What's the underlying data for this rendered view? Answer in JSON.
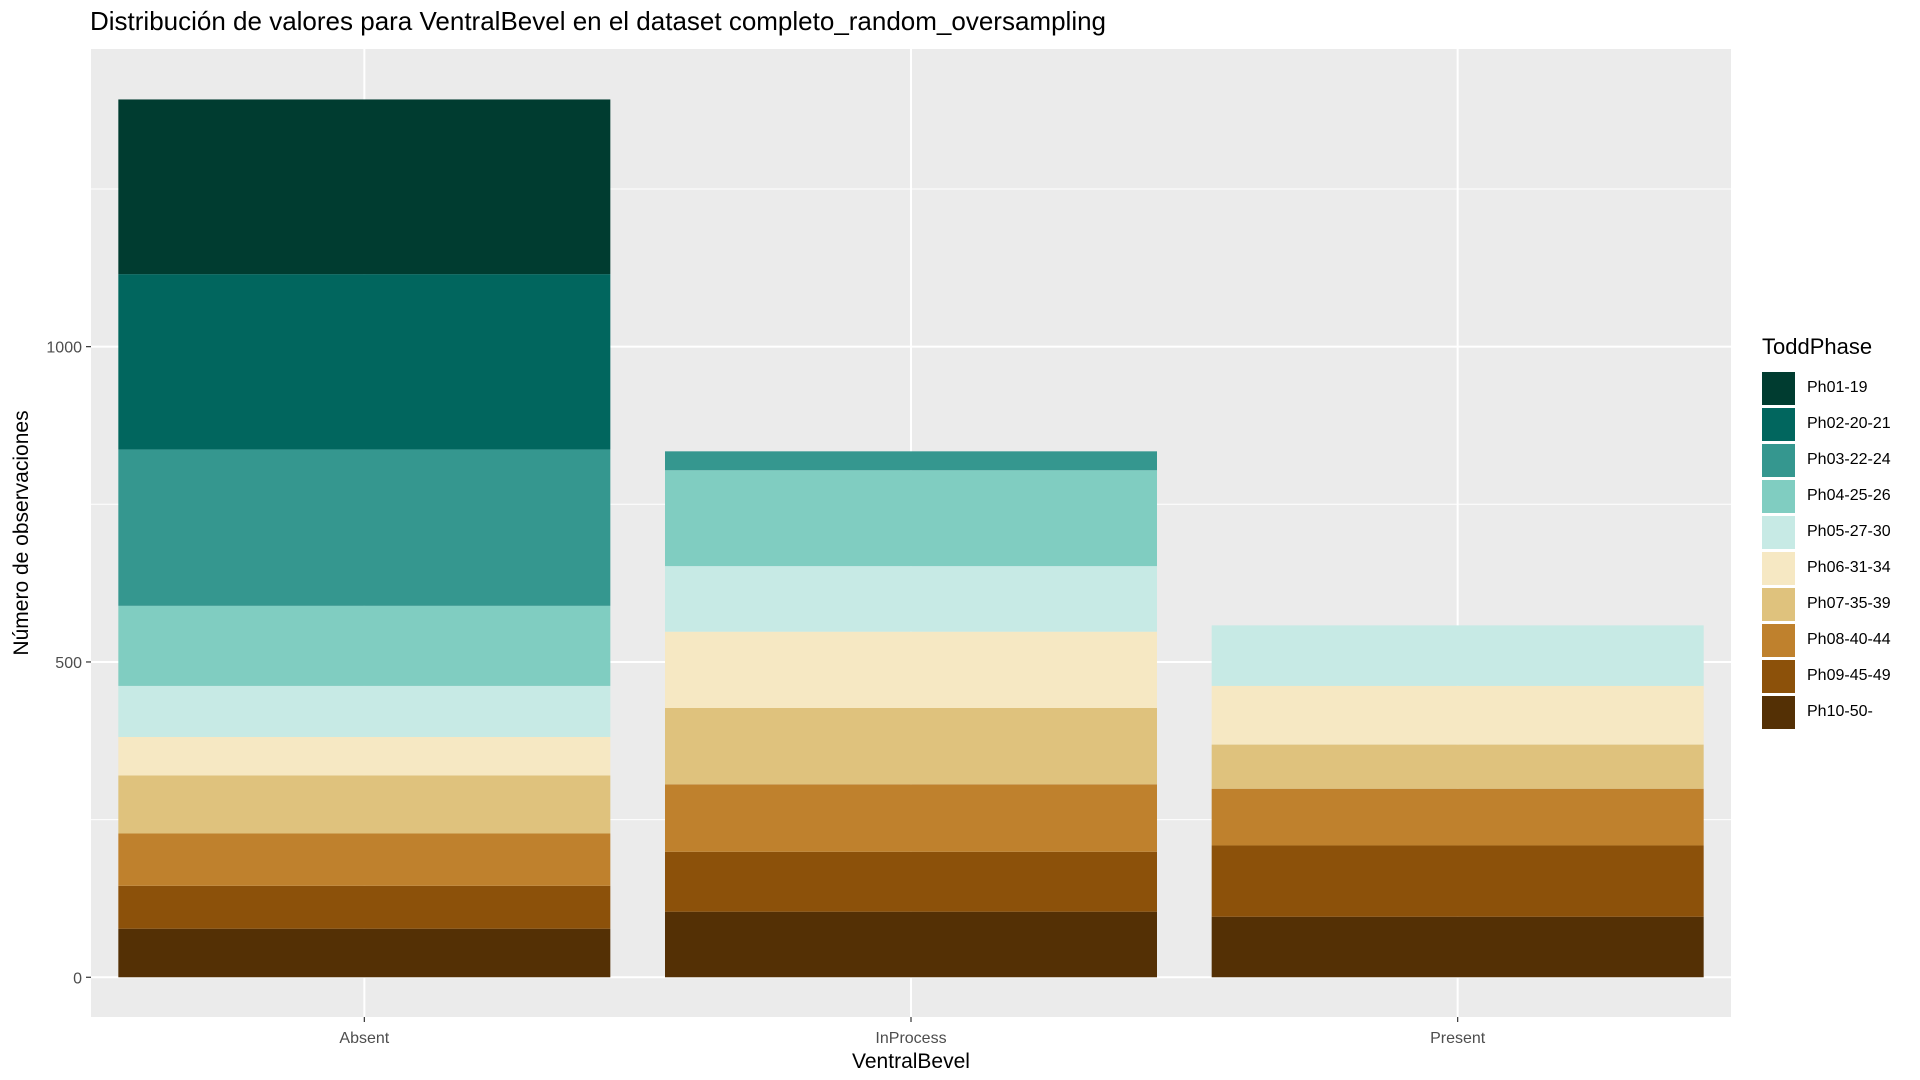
{
  "chart_data": {
    "type": "bar",
    "stacked": true,
    "title": "Distribución de valores para VentralBevel en el dataset completo_random_oversampling",
    "xlabel": "VentralBevel",
    "ylabel": "Número de observaciones",
    "categories": [
      "Absent",
      "InProcess",
      "Present"
    ],
    "ylim": [
      -63,
      1472
    ],
    "yticks": [
      0,
      500,
      1000
    ],
    "grid": true,
    "legend": {
      "title": "ToddPhase",
      "position": "right"
    },
    "series": [
      {
        "name": "Ph01-19",
        "color": "#003C30",
        "values": [
          277,
          0,
          0
        ]
      },
      {
        "name": "Ph02-20-21",
        "color": "#01665E",
        "values": [
          278,
          0,
          0
        ]
      },
      {
        "name": "Ph03-22-24",
        "color": "#35978F",
        "values": [
          248,
          30,
          0
        ]
      },
      {
        "name": "Ph04-25-26",
        "color": "#80CDC1",
        "values": [
          127,
          152,
          0
        ]
      },
      {
        "name": "Ph05-27-30",
        "color": "#C7EAE5",
        "values": [
          81,
          104,
          96
        ]
      },
      {
        "name": "Ph06-31-34",
        "color": "#F6E8C3",
        "values": [
          61,
          121,
          93
        ]
      },
      {
        "name": "Ph07-35-39",
        "color": "#DFC27D",
        "values": [
          92,
          121,
          70
        ]
      },
      {
        "name": "Ph08-40-44",
        "color": "#BF812D",
        "values": [
          83,
          107,
          90
        ]
      },
      {
        "name": "Ph09-45-49",
        "color": "#8C510A",
        "values": [
          68,
          95,
          113
        ]
      },
      {
        "name": "Ph10-50-",
        "color": "#543005",
        "values": [
          77,
          104,
          96
        ]
      }
    ]
  }
}
